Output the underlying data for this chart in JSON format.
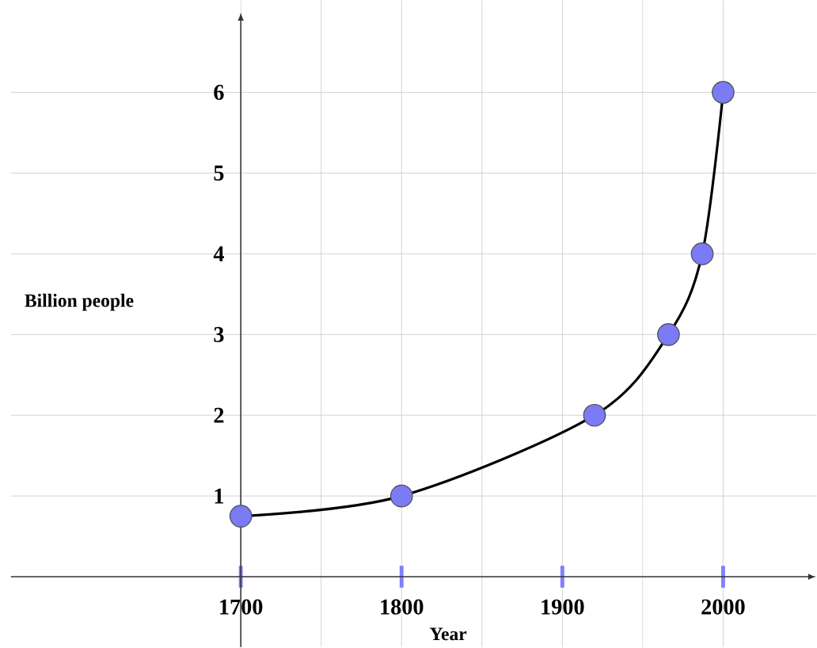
{
  "chart_data": {
    "type": "line",
    "xlabel": "Year",
    "ylabel": "Billion people",
    "x": [
      1700,
      1800,
      1920,
      1966,
      1987,
      2000
    ],
    "values": [
      0.75,
      1,
      2,
      3,
      4,
      6
    ],
    "color": "#000000",
    "marker": "circle",
    "xlim": [
      1557,
      2058
    ],
    "ylim": [
      -0.87,
      7.14
    ],
    "xticks": [
      1700,
      1800,
      1900,
      2000
    ],
    "yticks": [
      1,
      2,
      3,
      4,
      5,
      6
    ],
    "grid": true
  }
}
